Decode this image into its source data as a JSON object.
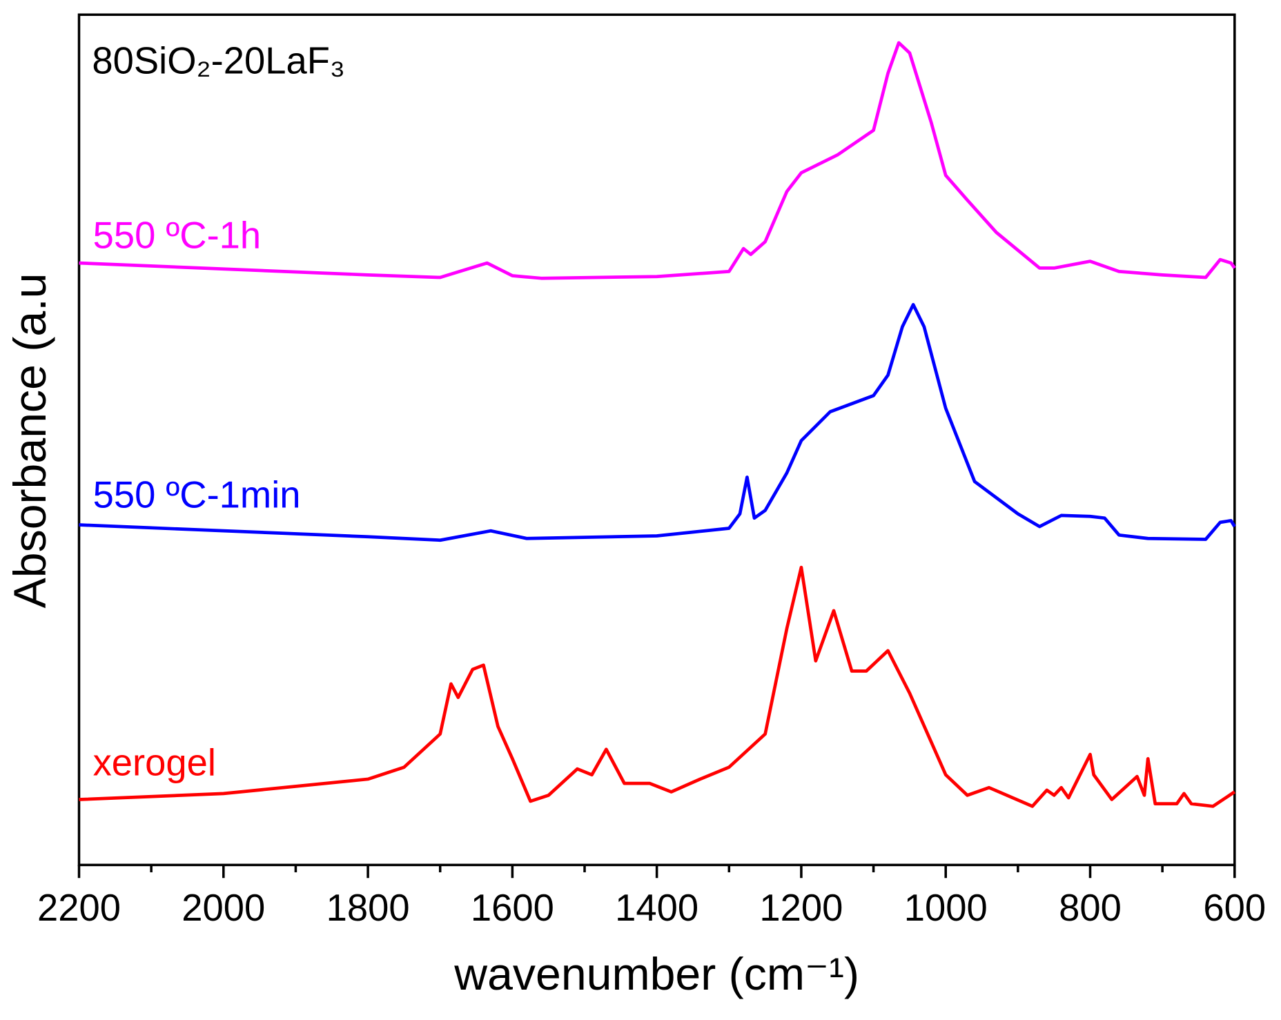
{
  "chart_data": {
    "type": "line",
    "title": "80SiO₂-20LaF₃",
    "x_label": "wavenumber (cm⁻¹)",
    "y_label": "Absorbance (a.u",
    "xlim": [
      2200,
      600
    ],
    "xticks": [
      2200,
      2000,
      1800,
      1600,
      1400,
      1200,
      1000,
      800,
      600
    ],
    "xminorticks": [
      2100,
      1900,
      1700,
      1500,
      1300,
      1100,
      900,
      700
    ],
    "ylim": [
      0,
      100
    ],
    "series": [
      {
        "name": "550 ºC-1h",
        "color": "#ff00ff",
        "x": [
          2200,
          2000,
          1800,
          1700,
          1635,
          1600,
          1560,
          1400,
          1300,
          1280,
          1270,
          1250,
          1220,
          1200,
          1150,
          1100,
          1080,
          1065,
          1050,
          1020,
          1000,
          970,
          930,
          870,
          850,
          800,
          760,
          700,
          640,
          620,
          605,
          600
        ],
        "values": [
          70.8,
          70.1,
          69.4,
          69.1,
          70.8,
          69.3,
          69.0,
          69.2,
          69.8,
          72.5,
          71.8,
          73.3,
          79.2,
          81.4,
          83.5,
          86.4,
          93.1,
          96.7,
          95.5,
          87.3,
          81.1,
          78.2,
          74.4,
          70.2,
          70.2,
          71.0,
          69.8,
          69.4,
          69.1,
          71.2,
          70.8,
          70.2
        ]
      },
      {
        "name": "550 ºC-1min",
        "color": "#0000ff",
        "x": [
          2200,
          2000,
          1800,
          1700,
          1630,
          1580,
          1400,
          1300,
          1285,
          1275,
          1265,
          1250,
          1220,
          1200,
          1160,
          1100,
          1080,
          1060,
          1045,
          1030,
          1000,
          960,
          900,
          870,
          840,
          800,
          780,
          760,
          720,
          640,
          620,
          605,
          600
        ],
        "values": [
          40.0,
          39.3,
          38.6,
          38.2,
          39.3,
          38.4,
          38.7,
          39.6,
          41.3,
          45.6,
          40.8,
          41.7,
          46.1,
          49.9,
          53.3,
          55.2,
          57.6,
          63.3,
          65.9,
          63.3,
          53.7,
          45.1,
          41.3,
          39.8,
          41.1,
          41.0,
          40.8,
          38.8,
          38.4,
          38.3,
          40.3,
          40.5,
          39.8
        ]
      },
      {
        "name": "xerogel",
        "color": "#ff0000",
        "x": [
          2200,
          2000,
          1800,
          1750,
          1700,
          1685,
          1675,
          1655,
          1640,
          1620,
          1600,
          1575,
          1550,
          1510,
          1490,
          1470,
          1445,
          1410,
          1380,
          1340,
          1300,
          1250,
          1220,
          1200,
          1180,
          1155,
          1130,
          1110,
          1080,
          1050,
          1000,
          970,
          940,
          880,
          860,
          850,
          840,
          830,
          800,
          795,
          770,
          735,
          725,
          720,
          710,
          680,
          670,
          660,
          630,
          600
        ],
        "values": [
          7.7,
          8.4,
          10.1,
          11.5,
          15.4,
          21.3,
          19.7,
          23.0,
          23.5,
          16.3,
          12.5,
          7.5,
          8.2,
          11.3,
          10.6,
          13.6,
          9.6,
          9.6,
          8.6,
          10.1,
          11.5,
          15.4,
          27.8,
          35.0,
          24.0,
          29.9,
          22.8,
          22.8,
          25.2,
          20.2,
          10.6,
          8.2,
          9.1,
          6.9,
          8.8,
          8.2,
          9.1,
          7.9,
          13.0,
          10.6,
          7.7,
          10.4,
          8.2,
          12.5,
          7.2,
          7.2,
          8.4,
          7.2,
          6.9,
          8.6
        ]
      }
    ]
  }
}
